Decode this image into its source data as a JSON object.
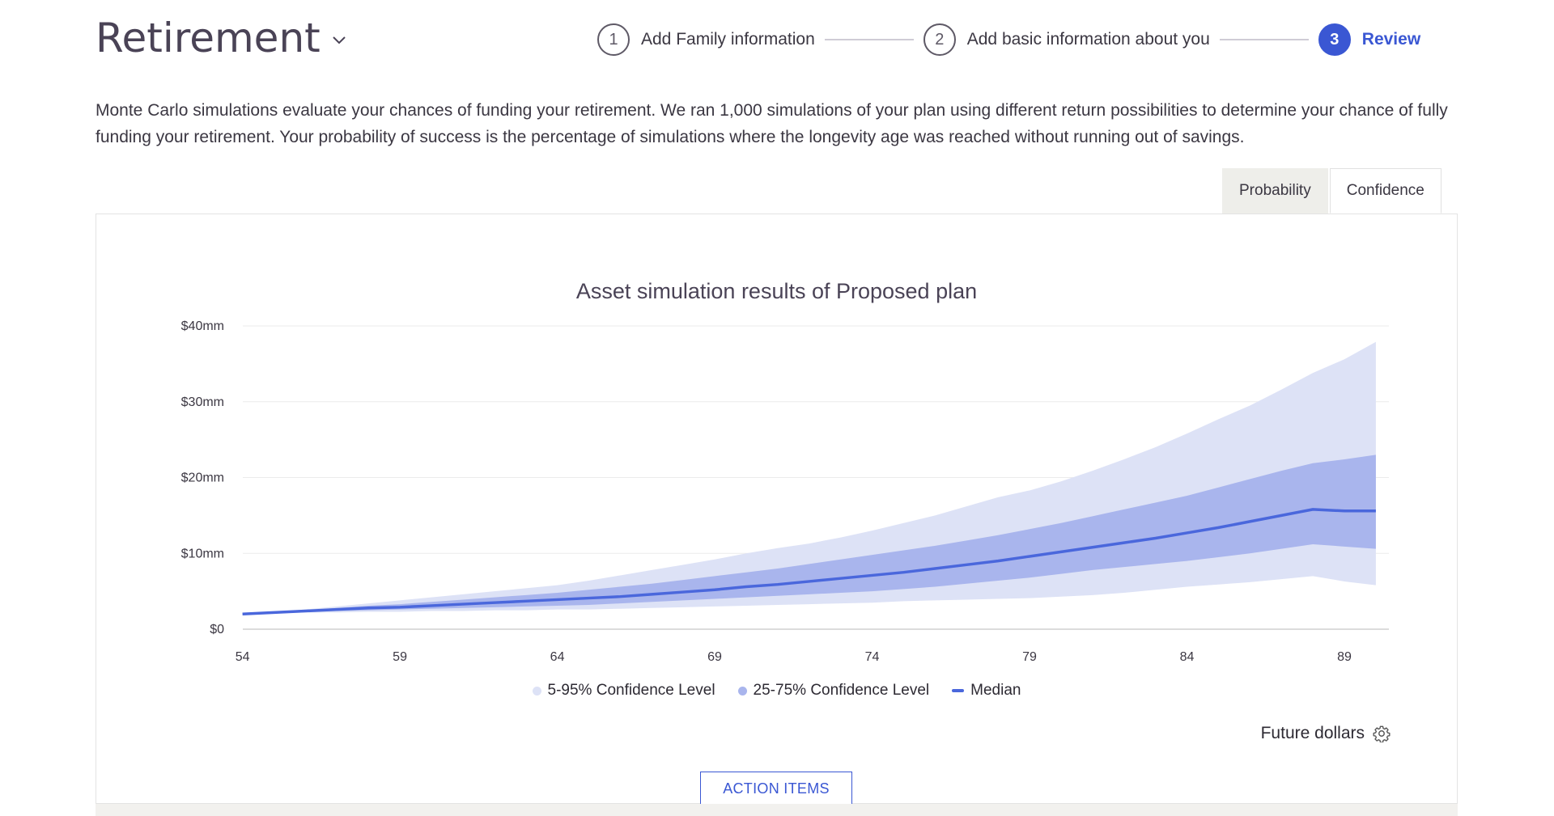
{
  "header": {
    "title": "Retirement",
    "steps": [
      {
        "number": "1",
        "label": "Add Family information",
        "active": false
      },
      {
        "number": "2",
        "label": "Add basic information about you",
        "active": false
      },
      {
        "number": "3",
        "label": "Review",
        "active": true
      }
    ]
  },
  "description": "Monte Carlo simulations evaluate your chances of funding your retirement. We ran 1,000 simulations of your plan using different return possibilities to determine your chance of fully funding your retirement. Your probability of success is the percentage of simulations where the longevity age was reached without running out of savings.",
  "tabs": [
    {
      "label": "Probability",
      "selected": false
    },
    {
      "label": "Confidence",
      "selected": true
    }
  ],
  "colors": {
    "accent": "#3a57d3",
    "band_outer": "#dde2f6",
    "band_inner": "#a9b5ed",
    "median": "#4a67dc"
  },
  "chart_data": {
    "type": "area",
    "title": "Asset simulation results of Proposed plan",
    "x": [
      54,
      55,
      56,
      57,
      58,
      59,
      60,
      61,
      62,
      63,
      64,
      65,
      66,
      67,
      68,
      69,
      70,
      71,
      72,
      73,
      74,
      75,
      76,
      77,
      78,
      79,
      80,
      81,
      82,
      83,
      84,
      85,
      86,
      87,
      88,
      89,
      90
    ],
    "x_ticks": [
      54,
      59,
      64,
      69,
      74,
      79,
      84,
      89
    ],
    "y_ticks": [
      0,
      10,
      20,
      30,
      40
    ],
    "y_tick_labels": [
      "$0",
      "$10mm",
      "$20mm",
      "$30mm",
      "$40mm"
    ],
    "ylim": [
      0,
      40
    ],
    "xlim": [
      54,
      90
    ],
    "grid": true,
    "series": [
      {
        "name": "5-95% Confidence Level",
        "lower": [
          2.0,
          2.1,
          2.2,
          2.2,
          2.3,
          2.3,
          2.4,
          2.4,
          2.5,
          2.5,
          2.6,
          2.6,
          2.7,
          2.8,
          2.9,
          3.0,
          3.1,
          3.2,
          3.3,
          3.4,
          3.5,
          3.7,
          3.8,
          3.9,
          4.0,
          4.1,
          4.3,
          4.5,
          4.8,
          5.2,
          5.6,
          5.9,
          6.2,
          6.6,
          7.0,
          6.3,
          5.8
        ],
        "upper": [
          2.0,
          2.3,
          2.6,
          3.0,
          3.4,
          3.8,
          4.2,
          4.6,
          5.0,
          5.4,
          5.8,
          6.4,
          7.1,
          7.8,
          8.5,
          9.2,
          10.0,
          10.7,
          11.3,
          12.1,
          13.0,
          14.0,
          15.0,
          16.2,
          17.4,
          18.3,
          19.5,
          20.9,
          22.4,
          24.0,
          25.8,
          27.7,
          29.5,
          31.6,
          33.8,
          35.6,
          37.9
        ]
      },
      {
        "name": "25-75% Confidence Level",
        "lower": [
          2.0,
          2.1,
          2.3,
          2.4,
          2.5,
          2.6,
          2.7,
          2.8,
          2.9,
          3.0,
          3.1,
          3.2,
          3.4,
          3.6,
          3.8,
          4.0,
          4.2,
          4.4,
          4.6,
          4.8,
          5.0,
          5.3,
          5.6,
          6.0,
          6.4,
          6.8,
          7.3,
          7.8,
          8.2,
          8.6,
          9.0,
          9.5,
          10.0,
          10.6,
          11.2,
          10.9,
          10.6
        ],
        "upper": [
          2.0,
          2.2,
          2.5,
          2.8,
          3.1,
          3.3,
          3.6,
          3.9,
          4.2,
          4.5,
          4.8,
          5.2,
          5.6,
          6.0,
          6.5,
          7.0,
          7.5,
          8.0,
          8.6,
          9.2,
          9.8,
          10.4,
          11.0,
          11.7,
          12.4,
          13.2,
          14.0,
          14.9,
          15.8,
          16.7,
          17.6,
          18.7,
          19.8,
          20.9,
          21.9,
          22.4,
          23.0
        ]
      },
      {
        "name": "Median",
        "values": [
          2.0,
          2.2,
          2.4,
          2.6,
          2.8,
          2.9,
          3.1,
          3.3,
          3.5,
          3.7,
          3.9,
          4.1,
          4.3,
          4.6,
          4.9,
          5.2,
          5.6,
          5.9,
          6.3,
          6.7,
          7.1,
          7.5,
          8.0,
          8.5,
          9.0,
          9.6,
          10.2,
          10.8,
          11.4,
          12.0,
          12.7,
          13.4,
          14.2,
          15.0,
          15.8,
          15.6,
          15.6
        ]
      }
    ]
  },
  "legend": {
    "outer": "5-95% Confidence Level",
    "inner": "25-75% Confidence Level",
    "median": "Median"
  },
  "dollars_label": "Future dollars",
  "action_button": "ACTION ITEMS",
  "icons": {
    "title_caret": "chevron-down-icon",
    "settings": "gear-icon"
  }
}
